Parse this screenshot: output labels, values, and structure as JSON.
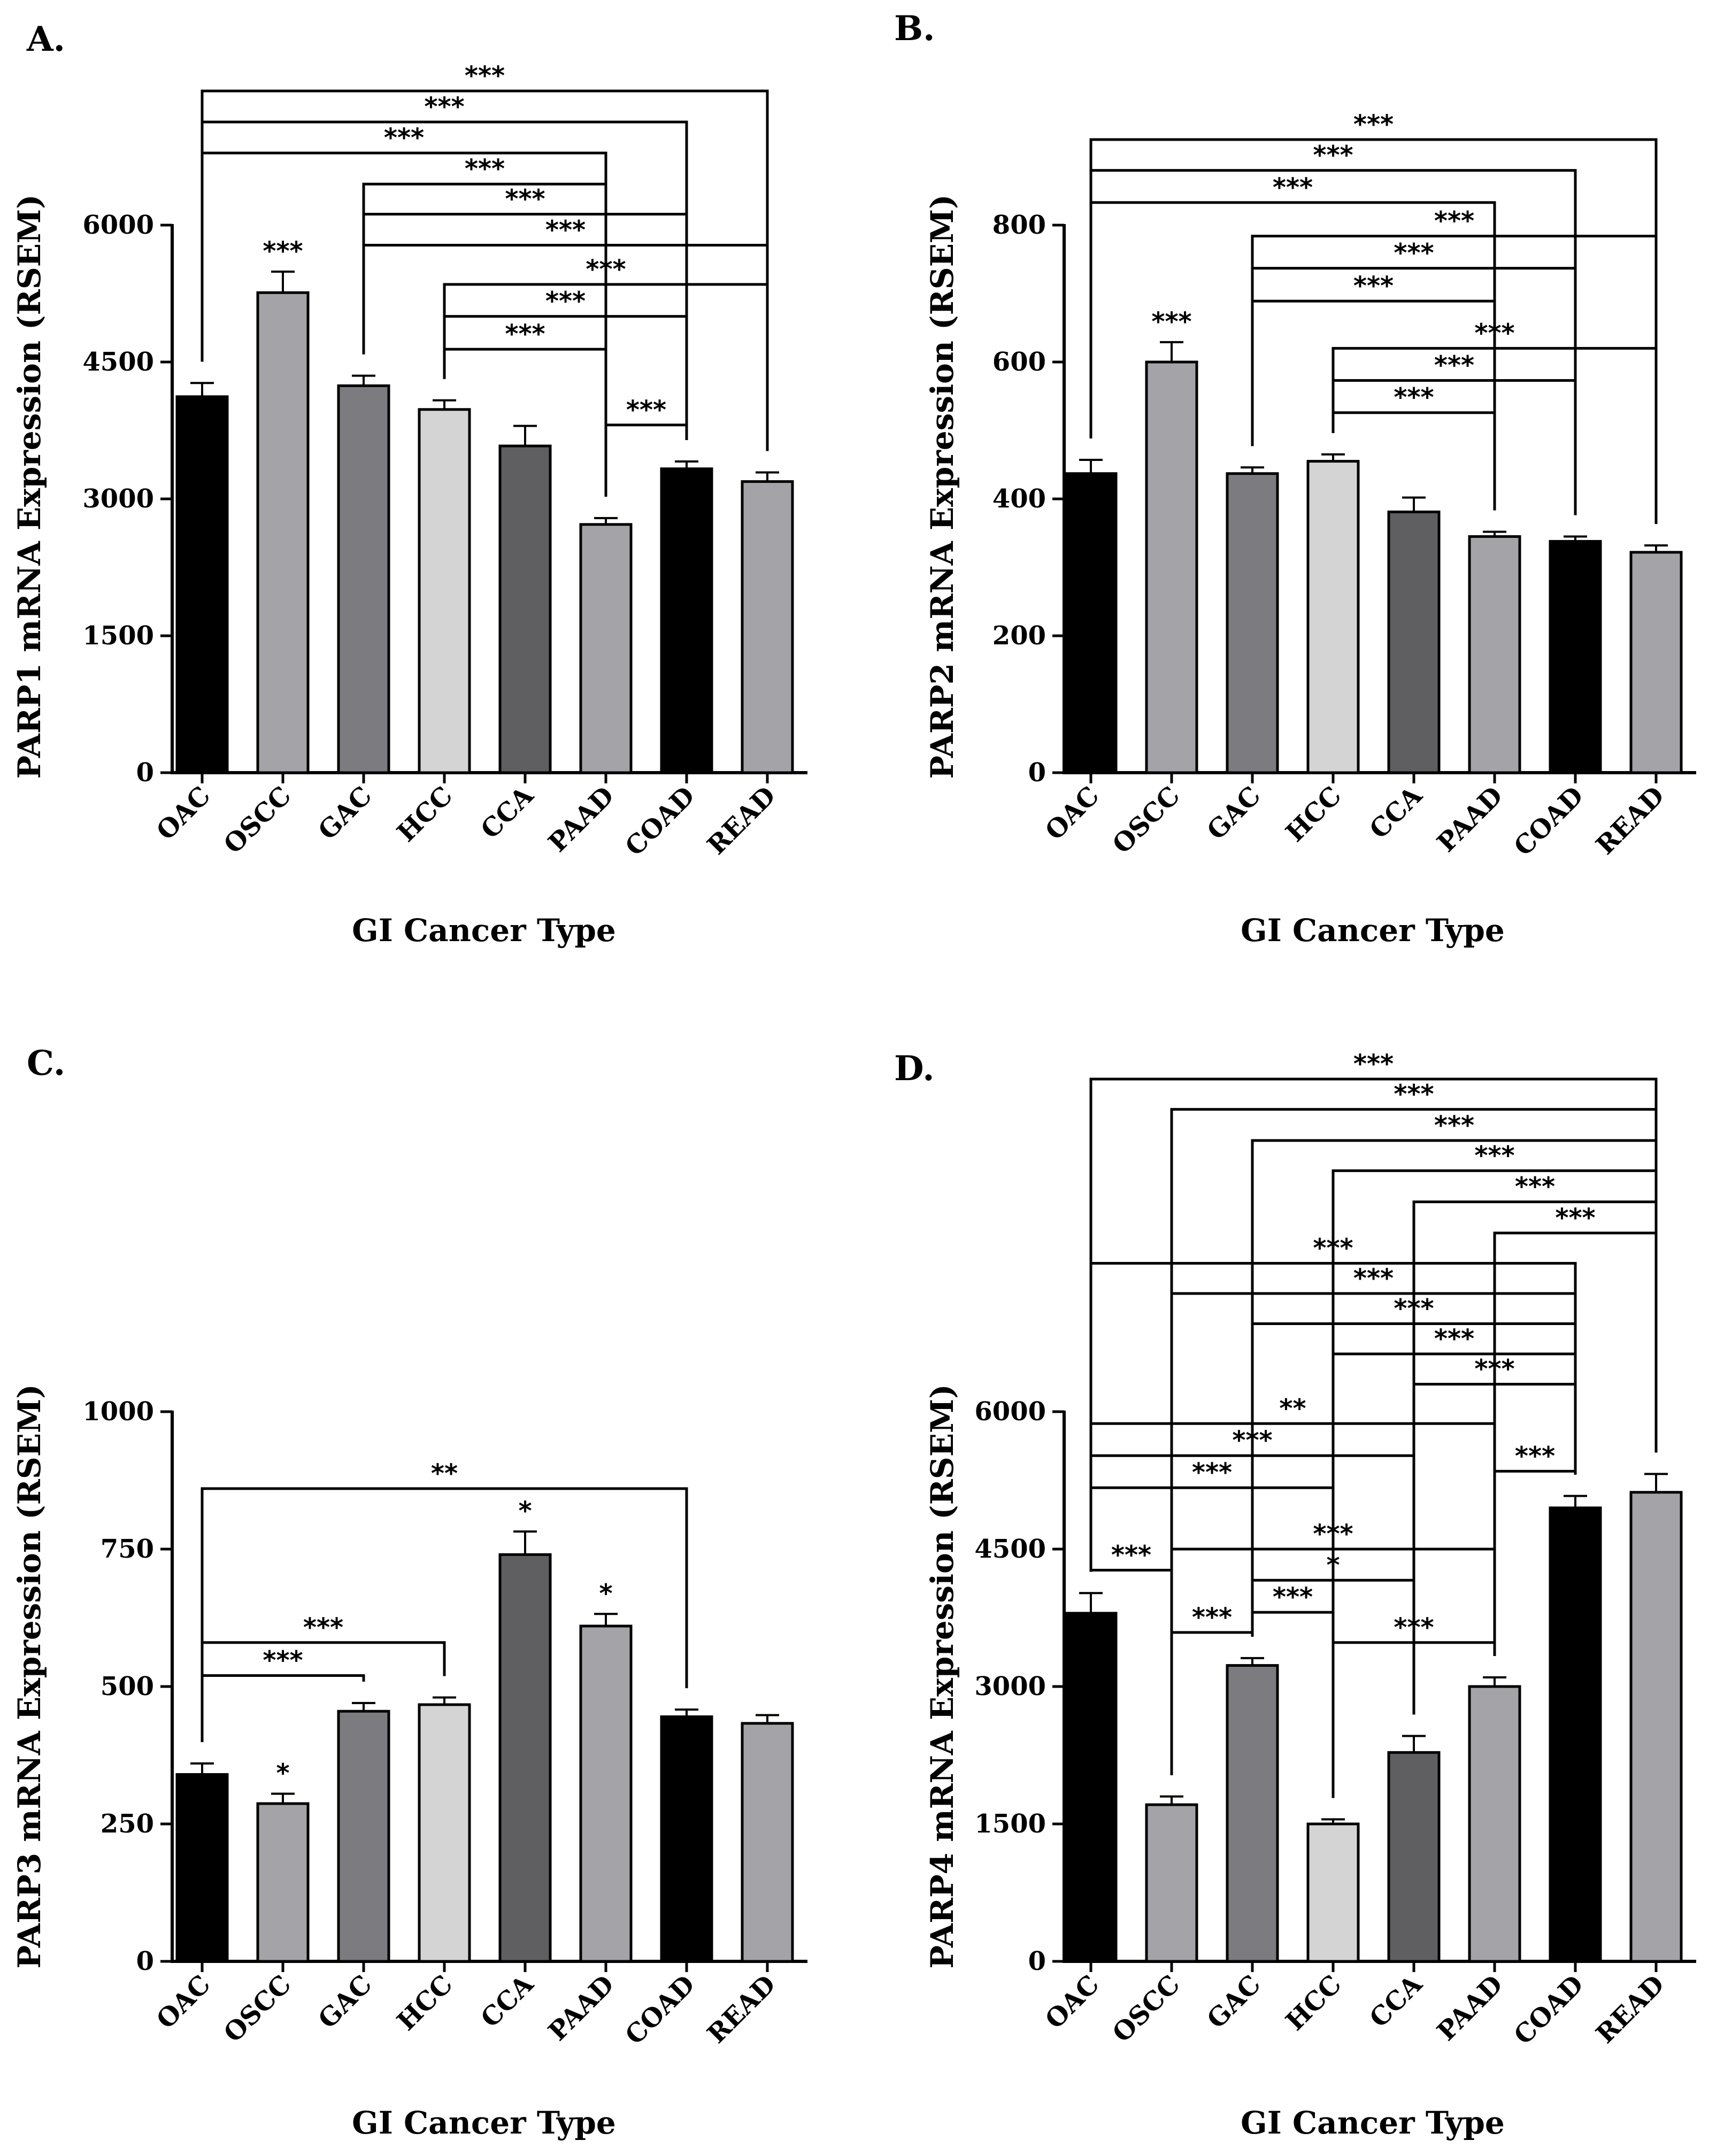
{
  "chart_data": [
    {
      "panel": "A.",
      "type": "bar",
      "ylabel": "PARP1 mRNA Expression (RSEM)",
      "xlabel": "GI Cancer Type",
      "categories": [
        "OAC",
        "OSCC",
        "GAC",
        "HCC",
        "CCA",
        "PAAD",
        "COAD",
        "READ"
      ],
      "values": [
        4120,
        5260,
        4240,
        3980,
        3580,
        2720,
        3330,
        3190
      ],
      "errors": [
        150,
        230,
        110,
        100,
        220,
        70,
        80,
        100
      ],
      "colors": [
        "#000000",
        "#a4a4a8",
        "#7c7c80",
        "#d4d4d4",
        "#5f5f61",
        "#a4a4a8",
        "#000000",
        "#a4a4a8"
      ],
      "ylim": [
        0,
        6000
      ],
      "yticks": [
        "0",
        "1500",
        "3000",
        "4500",
        "6000"
      ],
      "bar_annotations": [
        {
          "index": 1,
          "label": "***"
        }
      ],
      "brackets": [
        {
          "from": 0,
          "to": 7,
          "y": 7470,
          "label": "***"
        },
        {
          "from": 0,
          "to": 6,
          "y": 7130,
          "label": "***"
        },
        {
          "from": 0,
          "to": 5,
          "y": 6790,
          "label": "***"
        },
        {
          "from": 2,
          "to": 5,
          "y": 6450,
          "label": "***"
        },
        {
          "from": 2,
          "to": 6,
          "y": 6120,
          "label": "***"
        },
        {
          "from": 2,
          "to": 7,
          "y": 5780,
          "label": "***"
        },
        {
          "from": 3,
          "to": 7,
          "y": 5350,
          "label": "***"
        },
        {
          "from": 3,
          "to": 6,
          "y": 5000,
          "label": "***"
        },
        {
          "from": 3,
          "to": 5,
          "y": 4640,
          "label": "***"
        },
        {
          "from": 5,
          "to": 6,
          "y": 3810,
          "label": "***"
        }
      ]
    },
    {
      "panel": "B.",
      "type": "bar",
      "ylabel": "PARP2 mRNA Expression (RSEM)",
      "xlabel": "GI Cancer Type",
      "categories": [
        "OAC",
        "OSCC",
        "GAC",
        "HCC",
        "CCA",
        "PAAD",
        "COAD",
        "READ"
      ],
      "values": [
        437,
        600,
        437,
        455,
        381,
        345,
        338,
        322
      ],
      "errors": [
        20,
        29,
        9,
        10,
        21,
        7,
        7,
        10
      ],
      "colors": [
        "#000000",
        "#a4a4a8",
        "#7c7c80",
        "#d4d4d4",
        "#5f5f61",
        "#a4a4a8",
        "#000000",
        "#a4a4a8"
      ],
      "ylim": [
        0,
        800
      ],
      "yticks": [
        "0",
        "200",
        "400",
        "600",
        "800"
      ],
      "bar_annotations": [
        {
          "index": 1,
          "label": "***"
        }
      ],
      "brackets": [
        {
          "from": 0,
          "to": 7,
          "y": 925,
          "label": "***"
        },
        {
          "from": 0,
          "to": 6,
          "y": 880,
          "label": "***"
        },
        {
          "from": 0,
          "to": 5,
          "y": 833,
          "label": "***"
        },
        {
          "from": 2,
          "to": 7,
          "y": 784,
          "label": "***"
        },
        {
          "from": 2,
          "to": 6,
          "y": 737,
          "label": "***"
        },
        {
          "from": 2,
          "to": 5,
          "y": 689,
          "label": "***"
        },
        {
          "from": 3,
          "to": 7,
          "y": 620,
          "label": "***"
        },
        {
          "from": 3,
          "to": 6,
          "y": 573,
          "label": "***"
        },
        {
          "from": 3,
          "to": 5,
          "y": 526,
          "label": "***"
        }
      ]
    },
    {
      "panel": "C.",
      "type": "bar",
      "ylabel": "PARP3 mRNA Expression (RSEM)",
      "xlabel": "GI Cancer Type",
      "categories": [
        "OAC",
        "OSCC",
        "GAC",
        "HCC",
        "CCA",
        "PAAD",
        "COAD",
        "READ"
      ],
      "values": [
        340,
        287,
        455,
        467,
        740,
        610,
        445,
        433
      ],
      "errors": [
        20,
        18,
        15,
        13,
        42,
        22,
        13,
        15
      ],
      "colors": [
        "#000000",
        "#a4a4a8",
        "#7c7c80",
        "#d4d4d4",
        "#5f5f61",
        "#a4a4a8",
        "#000000",
        "#a4a4a8"
      ],
      "ylim": [
        0,
        1000
      ],
      "yticks": [
        "0",
        "250",
        "500",
        "750",
        "1000"
      ],
      "bar_annotations": [
        {
          "index": 1,
          "label": "*"
        },
        {
          "index": 4,
          "label": "*"
        },
        {
          "index": 5,
          "label": "*"
        }
      ],
      "brackets": [
        {
          "from": 0,
          "to": 6,
          "y": 860,
          "label": "**"
        },
        {
          "from": 0,
          "to": 3,
          "y": 580,
          "label": "***"
        },
        {
          "from": 0,
          "to": 2,
          "y": 520,
          "label": "***"
        }
      ]
    },
    {
      "panel": "D.",
      "type": "bar",
      "ylabel": "PARP4 mRNA Expression (RSEM)",
      "xlabel": "GI Cancer Type",
      "categories": [
        "OAC",
        "OSCC",
        "GAC",
        "HCC",
        "CCA",
        "PAAD",
        "COAD",
        "READ"
      ],
      "values": [
        3800,
        1710,
        3230,
        1500,
        2280,
        3000,
        4950,
        5120
      ],
      "errors": [
        220,
        90,
        80,
        50,
        180,
        100,
        130,
        200
      ],
      "colors": [
        "#000000",
        "#a4a4a8",
        "#7c7c80",
        "#d4d4d4",
        "#5f5f61",
        "#a4a4a8",
        "#000000",
        "#a4a4a8"
      ],
      "ylim": [
        0,
        6000
      ],
      "yticks": [
        "0",
        "1500",
        "3000",
        "4500",
        "6000"
      ],
      "bar_annotations": [],
      "brackets": [
        {
          "from": 0,
          "to": 7,
          "y": 9630,
          "label": "***"
        },
        {
          "from": 1,
          "to": 7,
          "y": 9300,
          "label": "***"
        },
        {
          "from": 2,
          "to": 7,
          "y": 8960,
          "label": "***"
        },
        {
          "from": 3,
          "to": 7,
          "y": 8630,
          "label": "***"
        },
        {
          "from": 4,
          "to": 7,
          "y": 8290,
          "label": "***"
        },
        {
          "from": 5,
          "to": 7,
          "y": 7950,
          "label": "***"
        },
        {
          "from": 0,
          "to": 6,
          "y": 7620,
          "label": "***"
        },
        {
          "from": 1,
          "to": 6,
          "y": 7290,
          "label": "***"
        },
        {
          "from": 2,
          "to": 6,
          "y": 6960,
          "label": "***"
        },
        {
          "from": 3,
          "to": 6,
          "y": 6630,
          "label": "***"
        },
        {
          "from": 4,
          "to": 6,
          "y": 6300,
          "label": "***"
        },
        {
          "from": 0,
          "to": 5,
          "y": 5870,
          "label": "**"
        },
        {
          "from": 0,
          "to": 4,
          "y": 5520,
          "label": "***"
        },
        {
          "from": 5,
          "to": 6,
          "y": 5350,
          "label": "***"
        },
        {
          "from": 0,
          "to": 3,
          "y": 5170,
          "label": "***"
        },
        {
          "from": 1,
          "to": 5,
          "y": 4500,
          "label": "***"
        },
        {
          "from": 0,
          "to": 1,
          "y": 4270,
          "label": "***"
        },
        {
          "from": 2,
          "to": 4,
          "y": 4160,
          "label": "*"
        },
        {
          "from": 2,
          "to": 3,
          "y": 3810,
          "label": "***"
        },
        {
          "from": 1,
          "to": 2,
          "y": 3590,
          "label": "***"
        },
        {
          "from": 3,
          "to": 5,
          "y": 3480,
          "label": "***"
        }
      ]
    }
  ]
}
